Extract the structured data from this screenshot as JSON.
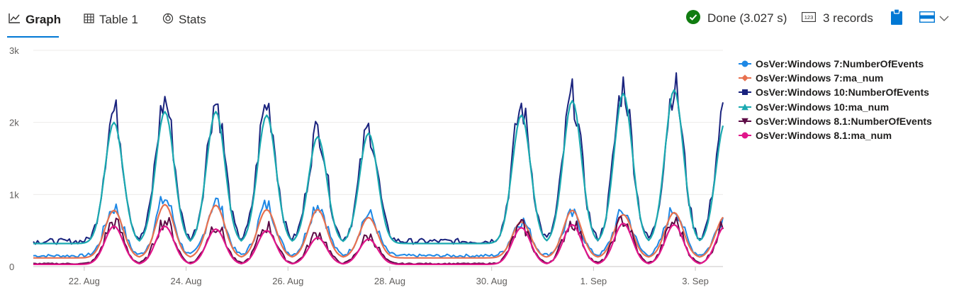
{
  "toolbar": {
    "tabs": [
      {
        "label": "Graph",
        "icon": "line-chart-icon",
        "active": true
      },
      {
        "label": "Table 1",
        "icon": "table-icon",
        "active": false
      },
      {
        "label": "Stats",
        "icon": "stats-icon",
        "active": false
      }
    ],
    "status": "Done (3.027 s)",
    "status_color": "#107c10",
    "records": "3 records",
    "accent": "#0078d4"
  },
  "chart_data": {
    "type": "line",
    "x_range": [
      "2021-08-21",
      "2021-09-03T13:00"
    ],
    "ylim": [
      0,
      3000
    ],
    "yticks": [
      0,
      1000,
      2000,
      3000
    ],
    "ytick_labels": [
      "0",
      "1k",
      "2k",
      "3k"
    ],
    "xticks": [
      "2021-08-22",
      "2021-08-24",
      "2021-08-26",
      "2021-08-28",
      "2021-08-30",
      "2021-09-01",
      "2021-09-03"
    ],
    "xtick_labels": [
      "22. Aug",
      "24. Aug",
      "26. Aug",
      "28. Aug",
      "30. Aug",
      "1. Sep",
      "3. Sep"
    ],
    "grid": true,
    "legend_position": "right",
    "series_shape": {
      "description": "hourly daily cycle; weekday day peaks and night troughs, weekend lows",
      "daily_peak_dates": [
        "2021-08-22",
        "2021-08-23",
        "2021-08-24",
        "2021-08-25",
        "2021-08-26",
        "2021-08-27",
        "2021-08-30",
        "2021-08-31",
        "2021-09-01",
        "2021-09-02",
        "2021-09-03"
      ]
    },
    "series": [
      {
        "name": "OsVer:Windows 7:NumberOfEvents",
        "color": "#1e88e5",
        "marker": "circle",
        "base": 150,
        "daily_peaks": [
          820,
          940,
          900,
          850,
          870,
          720,
          640,
          720,
          760,
          800,
          700
        ],
        "noise": 0.09
      },
      {
        "name": "OsVer:Windows 7:ma_num",
        "color": "#e8714f",
        "marker": "diamond",
        "base": 120,
        "daily_peaks": [
          780,
          860,
          850,
          790,
          790,
          680,
          620,
          780,
          720,
          750,
          700
        ],
        "noise": 0.0
      },
      {
        "name": "OsVer:Windows 10:NumberOfEvents",
        "color": "#1a237e",
        "marker": "square",
        "base": 350,
        "daily_peaks": [
          2150,
          2300,
          2280,
          2250,
          1900,
          1900,
          2200,
          2350,
          2500,
          2500,
          2200
        ],
        "noise": 0.07
      },
      {
        "name": "OsVer:Windows 10:ma_num",
        "color": "#1aa9b0",
        "marker": "triangle",
        "base": 320,
        "daily_peaks": [
          2000,
          2150,
          2150,
          2100,
          1800,
          1850,
          2100,
          2300,
          2400,
          2450,
          2000
        ],
        "noise": 0.0
      },
      {
        "name": "OsVer:Windows 8.1:NumberOfEvents",
        "color": "#5c0a45",
        "marker": "triangle-down",
        "base": 40,
        "daily_peaks": [
          620,
          640,
          580,
          560,
          460,
          420,
          560,
          620,
          650,
          620,
          580
        ],
        "noise": 0.12
      },
      {
        "name": "OsVer:Windows 8.1:ma_num",
        "color": "#e0158a",
        "marker": "circle",
        "base": 30,
        "daily_peaks": [
          560,
          560,
          520,
          500,
          400,
          380,
          540,
          580,
          600,
          580,
          560
        ],
        "noise": 0.0
      }
    ]
  }
}
